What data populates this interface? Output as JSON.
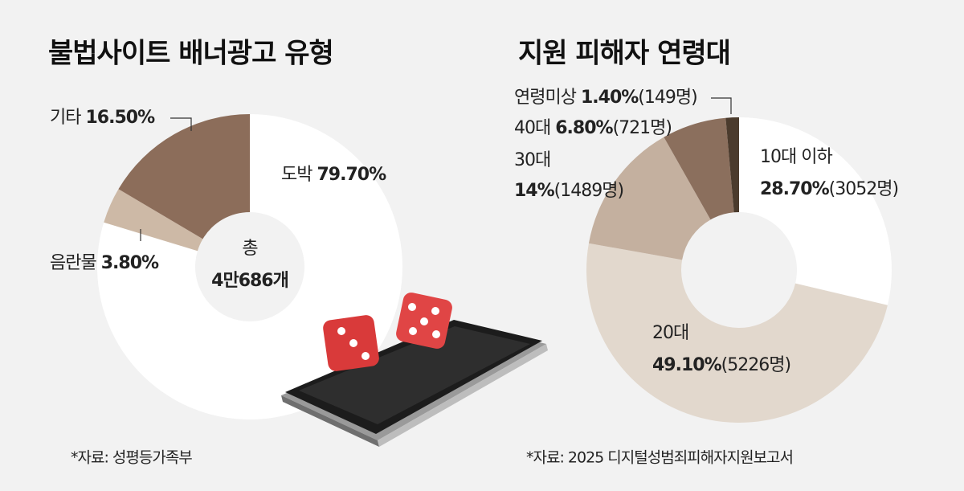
{
  "chart_data": [
    {
      "type": "donut",
      "title": "불법사이트 배너광고 유형",
      "categories": [
        "도박",
        "음란물",
        "기타"
      ],
      "values": [
        79.7,
        3.8,
        16.5
      ],
      "value_labels": [
        "79.70%",
        "3.80%",
        "16.50%"
      ],
      "colors": [
        "#ffffff",
        "#cdb9a6",
        "#8c6d5a"
      ],
      "center_label": [
        "총",
        "4만686개"
      ],
      "source": "*자료: 성평등가족부"
    },
    {
      "type": "donut",
      "title": "지원 피해자 연령대",
      "categories": [
        "10대 이하",
        "20대",
        "30대",
        "40대",
        "연령미상"
      ],
      "values": [
        28.7,
        49.1,
        14,
        6.8,
        1.4
      ],
      "value_labels": [
        "28.70%",
        "49.10%",
        "14%",
        "6.80%",
        "1.40%"
      ],
      "counts": [
        3052,
        5226,
        1489,
        721,
        149
      ],
      "count_labels": [
        "(3052명)",
        "(5226명)",
        "(1489명)",
        "(721명)",
        "(149명)"
      ],
      "colors": [
        "#ffffff",
        "#e2d8cd",
        "#c4b09f",
        "#8b6f5d",
        "#4b3b2d"
      ],
      "source": "*자료: 2025 디지털성범죄피해자지원보고서"
    }
  ]
}
